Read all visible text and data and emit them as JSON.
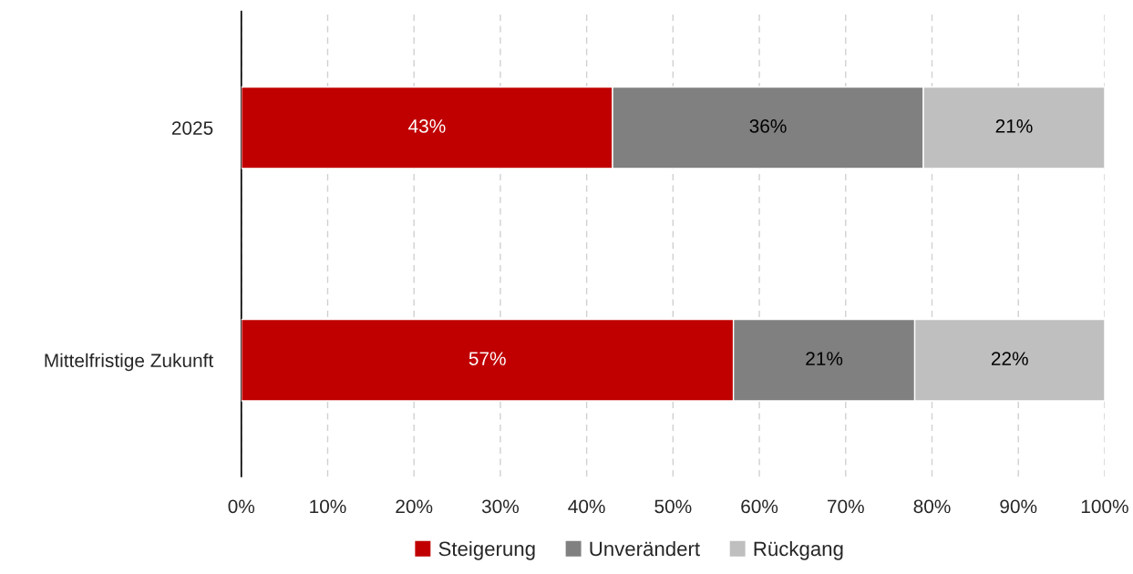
{
  "chart_data": {
    "type": "bar",
    "orientation": "horizontal",
    "stacked": true,
    "categories": [
      "2025",
      "Mittelfristige Zukunft"
    ],
    "series": [
      {
        "name": "Steigerung",
        "color": "#c00000",
        "values": [
          43,
          57
        ],
        "value_labels": [
          "43%",
          "57%"
        ]
      },
      {
        "name": "Unverändert",
        "color": "#808080",
        "values": [
          36,
          21
        ],
        "value_labels": [
          "36%",
          "21%"
        ]
      },
      {
        "name": "Rückgang",
        "color": "#bfbfbf",
        "values": [
          21,
          22
        ],
        "value_labels": [
          "21%",
          "22%"
        ]
      }
    ],
    "xlim": [
      0,
      100
    ],
    "xticks": [
      {
        "value": 0,
        "label": "0%"
      },
      {
        "value": 10,
        "label": "10%"
      },
      {
        "value": 20,
        "label": "20%"
      },
      {
        "value": 30,
        "label": "30%"
      },
      {
        "value": 40,
        "label": "40%"
      },
      {
        "value": 50,
        "label": "50%"
      },
      {
        "value": 60,
        "label": "60%"
      },
      {
        "value": 70,
        "label": "70%"
      },
      {
        "value": 80,
        "label": "80%"
      },
      {
        "value": 90,
        "label": "90%"
      },
      {
        "value": 100,
        "label": "100%"
      }
    ],
    "grid": "x",
    "legend": "bottom"
  }
}
